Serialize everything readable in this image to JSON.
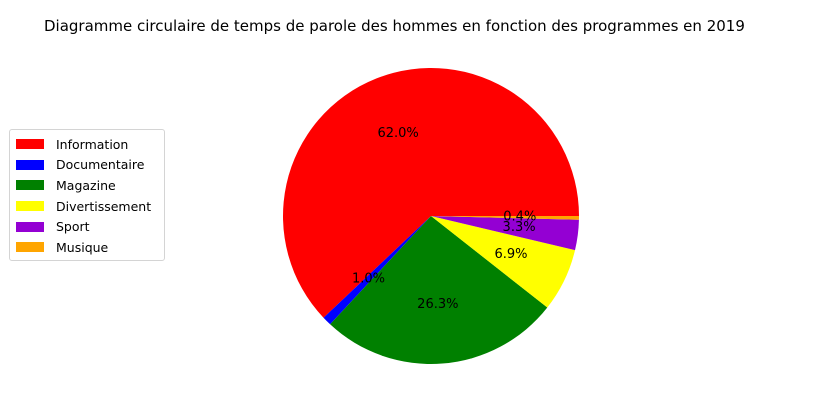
{
  "chart_data": {
    "type": "pie",
    "title": "Diagramme circulaire de temps de parole des hommes en fonction des programmes en 2019",
    "categories": [
      "Information",
      "Documentaire",
      "Magazine",
      "Divertissement",
      "Sport",
      "Musique"
    ],
    "values": [
      62.0,
      1.0,
      26.3,
      6.9,
      3.3,
      0.4
    ],
    "value_labels": [
      "62.0%",
      "1.0%",
      "26.3%",
      "6.9%",
      "3.3%",
      "0.4%"
    ],
    "colors": [
      "#ff0000",
      "#0000ff",
      "#008000",
      "#ffff00",
      "#9400d3",
      "#ffa500"
    ],
    "start_angle_deg": 0,
    "direction": "counterclockwise",
    "legend_position": "left"
  }
}
